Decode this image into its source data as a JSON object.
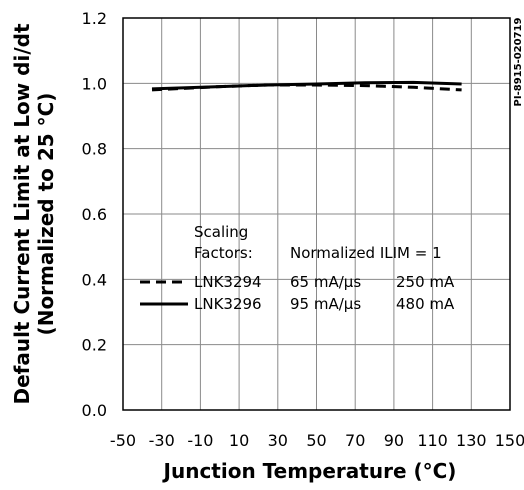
{
  "chart_data": {
    "type": "line",
    "code": "PI-8915-020719",
    "xlabel": "Junction Temperature (°C)",
    "ylabel": [
      "Default Current Limit at Low di/dt",
      "(Normalized to 25 °C)"
    ],
    "xlim": [
      -50,
      150
    ],
    "ylim": [
      0,
      1.2
    ],
    "xticks": [
      "-50",
      "-30",
      "-10",
      "10",
      "30",
      "50",
      "70",
      "90",
      "110",
      "130",
      "150"
    ],
    "yticks": [
      "0.0",
      "0.2",
      "0.4",
      "0.6",
      "0.8",
      "1.0",
      "1.2"
    ],
    "grid": true,
    "series": [
      {
        "name": "LNK3294",
        "style": "dashed",
        "x": [
          -35,
          0,
          25,
          50,
          75,
          100,
          125
        ],
        "y": [
          0.98,
          0.99,
          0.995,
          0.995,
          0.993,
          0.988,
          0.98
        ]
      },
      {
        "name": "LNK3296",
        "style": "solid",
        "x": [
          -35,
          0,
          25,
          50,
          75,
          100,
          125
        ],
        "y": [
          0.983,
          0.99,
          0.995,
          0.998,
          1.002,
          1.003,
          0.998
        ]
      }
    ],
    "legend": {
      "header_line1": "Scaling",
      "header_line2": "Factors:",
      "header_note": "Normalized ILIM = 1",
      "rows": [
        {
          "name": "LNK3294",
          "rate": "65 mA/μs",
          "ilim": "250 mA"
        },
        {
          "name": "LNK3296",
          "rate": "95 mA/μs",
          "ilim": "480 mA"
        }
      ]
    }
  }
}
